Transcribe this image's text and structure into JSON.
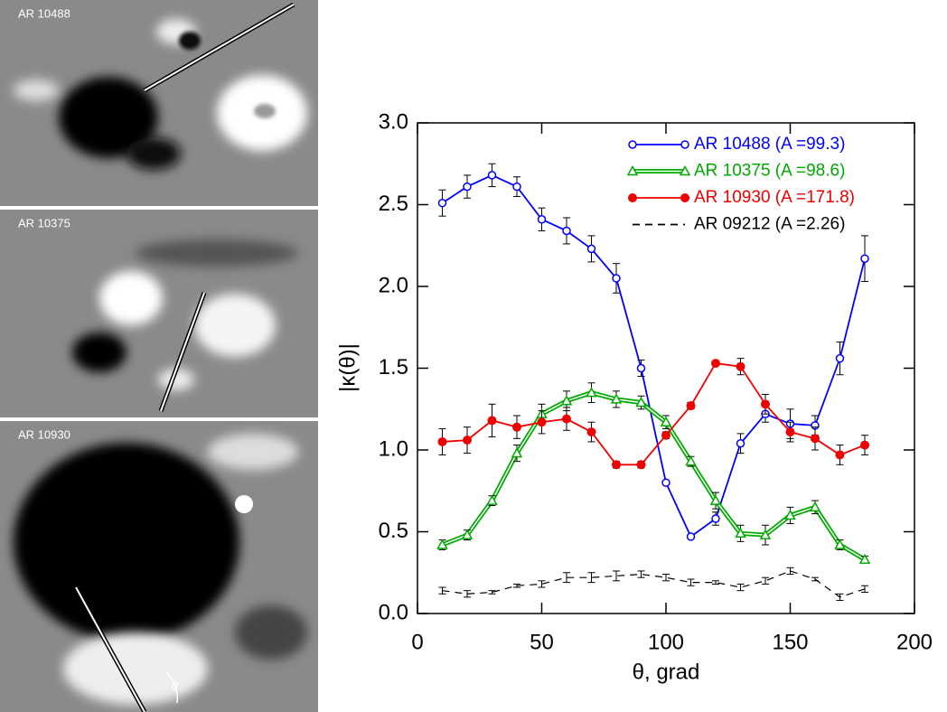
{
  "images": {
    "labels": [
      "AR 10488",
      "AR 10375",
      "AR 10930"
    ],
    "angle_symbol": "θ"
  },
  "chart_data": {
    "type": "line",
    "xlabel": "θ, grad",
    "ylabel": "|κ(θ)|",
    "x": [
      10,
      20,
      30,
      40,
      50,
      60,
      70,
      80,
      90,
      100,
      110,
      120,
      130,
      140,
      150,
      160,
      170,
      180
    ],
    "xlim": [
      0,
      200
    ],
    "xticks": [
      0,
      50,
      100,
      150,
      200
    ],
    "ylim": [
      0,
      3
    ],
    "yticks": [
      {
        "value": 0,
        "label": "0.0"
      },
      0.5,
      {
        "value": 1,
        "label": "1.0"
      },
      1.5,
      {
        "value": 2,
        "label": "2.0"
      },
      2.5,
      {
        "value": 3,
        "label": "3.0"
      }
    ],
    "legend": "upper right",
    "series": [
      {
        "name": "AR 10488 (A =99.3)",
        "color": "#0000ff",
        "marker": "circle-open",
        "line_style": "solid",
        "values": [
          2.51,
          2.61,
          2.68,
          2.61,
          2.41,
          2.34,
          2.23,
          2.05,
          1.5,
          0.8,
          0.47,
          0.58,
          1.04,
          1.22,
          1.16,
          1.15,
          1.56,
          2.17
        ],
        "errors": [
          0.08,
          0.07,
          0.07,
          0.06,
          0.07,
          0.08,
          0.08,
          0.09,
          0.05,
          0.0,
          0.0,
          0.04,
          0.06,
          0.05,
          0.09,
          0.06,
          0.1,
          0.14
        ]
      },
      {
        "name": "AR 10375 (A =98.6)",
        "color": "#00aa00",
        "marker": "triangle-open",
        "line_style": "double",
        "values": [
          0.42,
          0.48,
          0.69,
          0.98,
          1.22,
          1.3,
          1.35,
          1.31,
          1.29,
          1.17,
          0.93,
          0.69,
          0.49,
          0.48,
          0.6,
          0.65,
          0.42,
          0.33
        ],
        "errors": [
          0.03,
          0.03,
          0.03,
          0.05,
          0.06,
          0.06,
          0.06,
          0.05,
          0.04,
          0.04,
          0.03,
          0.05,
          0.05,
          0.06,
          0.05,
          0.04,
          0.03,
          0.02
        ]
      },
      {
        "name": "AR 10930 (A =171.8)",
        "color": "#ee0000",
        "marker": "circle-filled",
        "line_style": "solid",
        "values": [
          1.05,
          1.06,
          1.18,
          1.14,
          1.17,
          1.19,
          1.11,
          0.91,
          0.91,
          1.09,
          1.27,
          1.53,
          1.51,
          1.28,
          1.11,
          1.07,
          0.97,
          1.03
        ],
        "errors": [
          0.08,
          0.08,
          0.1,
          0.07,
          0.07,
          0.07,
          0.06,
          0.02,
          0.02,
          0.02,
          0.02,
          0.01,
          0.05,
          0.06,
          0.06,
          0.07,
          0.06,
          0.06
        ]
      },
      {
        "name": "AR 09212 (A =2.26)",
        "color": "#000000",
        "marker": "none",
        "line_style": "dashed",
        "values": [
          0.14,
          0.12,
          0.13,
          0.17,
          0.18,
          0.22,
          0.22,
          0.23,
          0.24,
          0.22,
          0.19,
          0.19,
          0.16,
          0.2,
          0.26,
          0.21,
          0.1,
          0.15
        ],
        "errors": [
          0.02,
          0.02,
          0.01,
          0.01,
          0.02,
          0.03,
          0.03,
          0.03,
          0.02,
          0.02,
          0.02,
          0.01,
          0.02,
          0.02,
          0.02,
          0.01,
          0.02,
          0.02
        ]
      }
    ]
  }
}
